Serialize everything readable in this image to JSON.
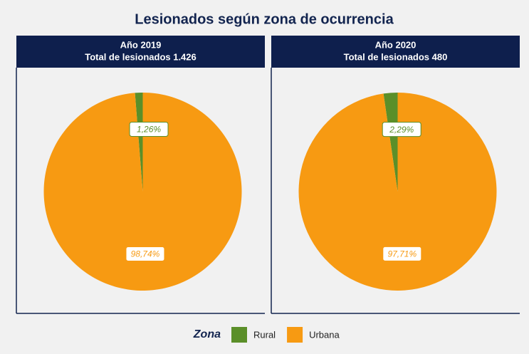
{
  "title": "Lesionados según zona de ocurrencia",
  "legend_title": "Zona",
  "chart_data": [
    {
      "type": "pie",
      "title": "Año 2019",
      "subtitle": "Total de lesionados 1.426",
      "categories": [
        "Rural",
        "Urbana"
      ],
      "values": [
        1.26,
        98.74
      ],
      "value_labels": [
        "1,26%",
        "98,74%"
      ],
      "colors": [
        "#5b8f29",
        "#f79a12"
      ]
    },
    {
      "type": "pie",
      "title": "Año 2020",
      "subtitle": "Total de lesionados 480",
      "categories": [
        "Rural",
        "Urbana"
      ],
      "values": [
        2.29,
        97.71
      ],
      "value_labels": [
        "2,29%",
        "97,71%"
      ],
      "colors": [
        "#5b8f29",
        "#f79a12"
      ]
    }
  ]
}
